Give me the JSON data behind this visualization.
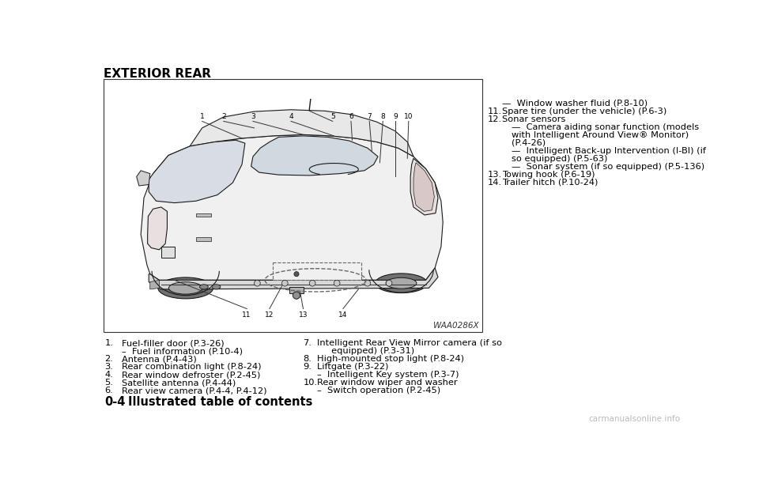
{
  "title": "EXTERIOR REAR",
  "bg_color": "#ffffff",
  "image_label": "WAA0286X",
  "left_col_items": [
    {
      "num": "1.",
      "text": "Fuel-filler door (P.3-26)"
    },
    {
      "num": "",
      "text": "–  Fuel information (P.10-4)"
    },
    {
      "num": "2.",
      "text": "Antenna (P.4-43)"
    },
    {
      "num": "3.",
      "text": "Rear combination light (P.8-24)"
    },
    {
      "num": "4.",
      "text": "Rear window defroster (P.2-45)"
    },
    {
      "num": "5.",
      "text": "Satellite antenna (P.4-44)"
    },
    {
      "num": "6.",
      "text": "Rear view camera (P.4-4, P.4-12)"
    }
  ],
  "mid_col_items": [
    {
      "num": "7.",
      "text": "Intelligent Rear View Mirror camera (if so",
      "text2": "     equipped) (P.3-31)"
    },
    {
      "num": "8.",
      "text": "High-mounted stop light (P.8-24)",
      "text2": ""
    },
    {
      "num": "9.",
      "text": "Liftgate (P.3-22)",
      "text2": ""
    },
    {
      "num": "",
      "text": "–  Intelligent Key system (P.3-7)",
      "text2": ""
    },
    {
      "num": "10.",
      "text": "Rear window wiper and washer",
      "text2": ""
    },
    {
      "num": "",
      "text": "–  Switch operation (P.2-45)",
      "text2": ""
    }
  ],
  "right_col_items": [
    {
      "num": "",
      "text": "—  Window washer fluid (P.8-10)"
    },
    {
      "num": "11.",
      "text": "Spare tire (under the vehicle) (P.6-3)"
    },
    {
      "num": "12.",
      "text": "Sonar sensors"
    },
    {
      "num": "",
      "text": "—  Camera aiding sonar function (models"
    },
    {
      "num": "",
      "text": "with Intelligent Around View® Monitor)"
    },
    {
      "num": "",
      "text": "(P.4-26)"
    },
    {
      "num": "",
      "text": "—  Intelligent Back-up Intervention (I-BI) (if"
    },
    {
      "num": "",
      "text": "so equipped) (P.5-63)"
    },
    {
      "num": "",
      "text": "—  Sonar system (if so equipped) (P.5-136)"
    },
    {
      "num": "13.",
      "text": "Towing hook (P.6-19)"
    },
    {
      "num": "14.",
      "text": "Trailer hitch (P.10-24)"
    }
  ],
  "footer_text": "0-4",
  "footer_text2": "Illustrated table of contents",
  "watermark": "carmanualsonline.info",
  "item_fontsize": 8.2,
  "title_fontsize": 11,
  "footer_fontsize": 10.5
}
